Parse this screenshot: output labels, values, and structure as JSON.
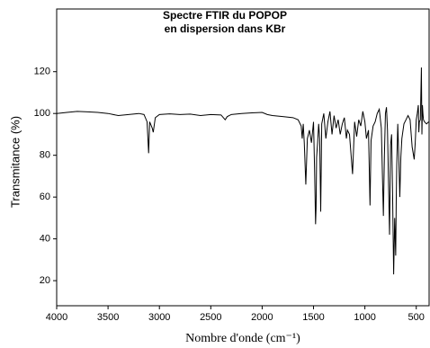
{
  "chart_data": {
    "type": "line",
    "title": [
      "Spectre FTIR du POPOP",
      "en dispersion dans KBr"
    ],
    "xlabel": "Nombre d'onde (cm⁻¹)",
    "ylabel": "Transmitance (%)",
    "xlim": [
      4000,
      375
    ],
    "ylim": [
      8,
      150
    ],
    "xticks": [
      4000,
      3500,
      3000,
      2500,
      2000,
      1500,
      1000,
      500
    ],
    "yticks": [
      20,
      40,
      60,
      80,
      100,
      120
    ],
    "series": [
      {
        "color": "#000000",
        "x": [
          4000,
          3900,
          3800,
          3700,
          3600,
          3500,
          3400,
          3300,
          3200,
          3150,
          3120,
          3105,
          3095,
          3070,
          3060,
          3040,
          3000,
          2900,
          2800,
          2700,
          2600,
          2500,
          2400,
          2360,
          2340,
          2300,
          2200,
          2100,
          2000,
          1950,
          1900,
          1800,
          1700,
          1650,
          1620,
          1610,
          1600,
          1590,
          1575,
          1560,
          1540,
          1520,
          1500,
          1490,
          1480,
          1475,
          1470,
          1460,
          1450,
          1440,
          1430,
          1420,
          1400,
          1380,
          1360,
          1340,
          1320,
          1300,
          1280,
          1260,
          1240,
          1220,
          1200,
          1180,
          1170,
          1150,
          1120,
          1100,
          1080,
          1060,
          1040,
          1020,
          1000,
          985,
          965,
          950,
          940,
          920,
          900,
          880,
          860,
          840,
          820,
          810,
          800,
          790,
          780,
          760,
          750,
          740,
          730,
          720,
          710,
          700,
          695,
          690,
          680,
          670,
          660,
          650,
          640,
          620,
          600,
          580,
          560,
          540,
          520,
          510,
          500,
          490,
          480,
          475,
          470,
          460,
          450,
          445,
          440,
          435,
          430,
          420,
          400,
          380
        ],
        "values": [
          100,
          100.5,
          101,
          100.8,
          100.5,
          100,
          99,
          99.5,
          100,
          99.5,
          96,
          81,
          96,
          93,
          91,
          98,
          99.5,
          99.8,
          99.5,
          99.7,
          99,
          99.5,
          99.3,
          97,
          98.5,
          99.5,
          100,
          100.3,
          100.5,
          99.5,
          99,
          98.5,
          98,
          97,
          94,
          88,
          95,
          86,
          66,
          88,
          92,
          86,
          96,
          74,
          47,
          55,
          79,
          86,
          95,
          88,
          53,
          95,
          100,
          88,
          96,
          101,
          90,
          99,
          93,
          97,
          90,
          95,
          98,
          88,
          92,
          90,
          71,
          96,
          89,
          97,
          94,
          101,
          96,
          88,
          92,
          56,
          87,
          94,
          96,
          100,
          102,
          93,
          51,
          80,
          100,
          103,
          92,
          42,
          85,
          90,
          60,
          23,
          50,
          32,
          58,
          75,
          95,
          79,
          60,
          79,
          88,
          95,
          97,
          99,
          97,
          84,
          78,
          86,
          97,
          100,
          104,
          91,
          96,
          97,
          122,
          90,
          104,
          100,
          97,
          96,
          95,
          96
        ]
      }
    ]
  }
}
